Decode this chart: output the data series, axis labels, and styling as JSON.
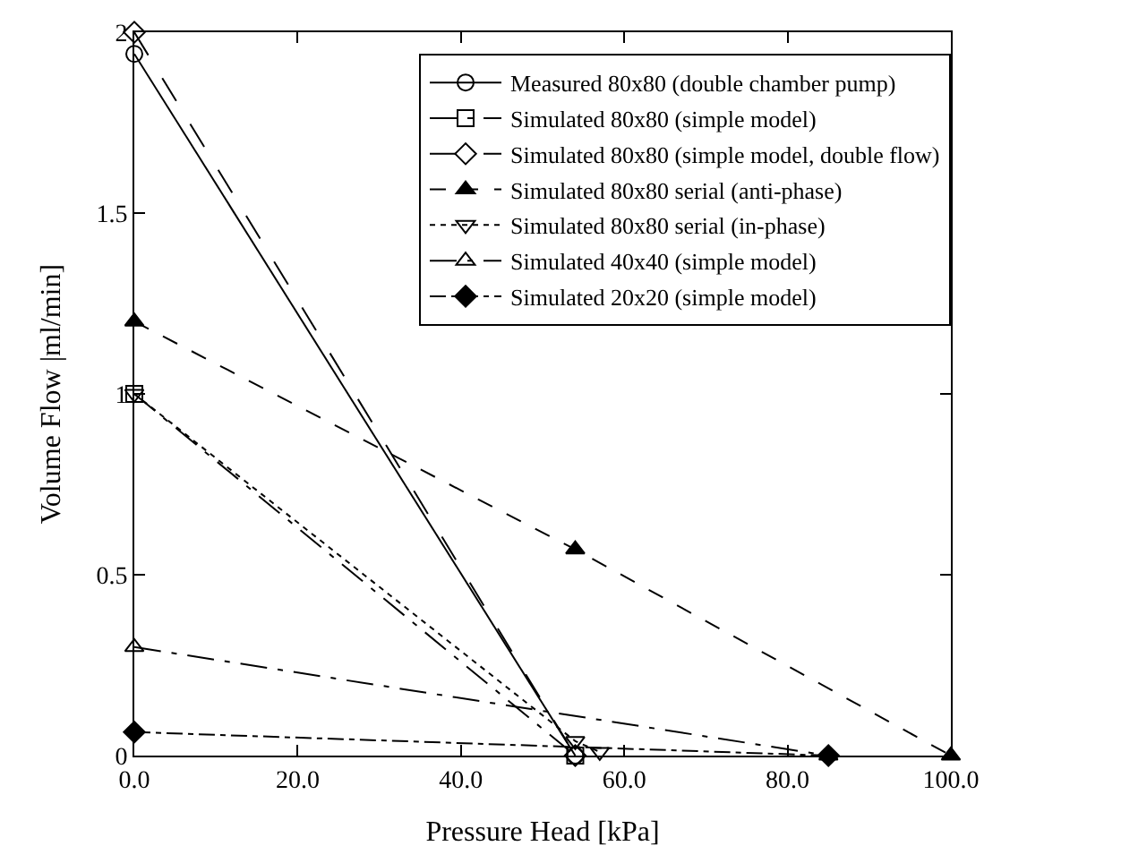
{
  "chart_data": {
    "type": "line",
    "xlabel": "Pressure Head [kPa]",
    "ylabel": "Volume Flow |ml/min]",
    "xlim": [
      0,
      100
    ],
    "ylim": [
      0,
      2
    ],
    "xticks": [
      {
        "value": 0,
        "label": "0.0"
      },
      {
        "value": 20,
        "label": "20.0"
      },
      {
        "value": 40,
        "label": "40.0"
      },
      {
        "value": 60,
        "label": "60.0"
      },
      {
        "value": 80,
        "label": "80.0"
      },
      {
        "value": 100,
        "label": "100.0"
      }
    ],
    "yticks": [
      0,
      0.5,
      1,
      1.5,
      2
    ],
    "legend": "top right",
    "series": [
      {
        "name": "Measured 80x80 (double chamber pump)",
        "color": "#000000",
        "marker": "circle-open",
        "line_style": "solid",
        "x": [
          0,
          54
        ],
        "values": [
          1.94,
          0
        ]
      },
      {
        "name": "Simulated 80x80 (simple model)",
        "color": "#000000",
        "marker": "square-open",
        "line_style": "longdashdot",
        "x": [
          0,
          54
        ],
        "values": [
          1.0,
          0
        ]
      },
      {
        "name": "Simulated 80x80 (simple model, double flow)",
        "color": "#000000",
        "marker": "diamond-open",
        "line_style": "longdash",
        "x": [
          0,
          54
        ],
        "values": [
          2.0,
          0
        ]
      },
      {
        "name": "Simulated 80x80 serial (anti-phase)",
        "color": "#000000",
        "marker": "triangle",
        "line_style": "dashed",
        "x": [
          0,
          54,
          100
        ],
        "values": [
          1.2,
          0.57,
          0
        ]
      },
      {
        "name": "Simulated 80x80 serial (in-phase)",
        "color": "#000000",
        "marker": "triangle-down-open",
        "line_style": "dotted",
        "x": [
          0,
          54,
          57
        ],
        "values": [
          1.0,
          0.04,
          0.01
        ]
      },
      {
        "name": "Simulated 40x40 (simple model)",
        "color": "#000000",
        "marker": "triangle-open",
        "line_style": "longdashdot",
        "x": [
          0,
          85
        ],
        "values": [
          0.3,
          0
        ]
      },
      {
        "name": "Simulated 20x20 (simple model)",
        "color": "#000000",
        "marker": "diamond",
        "line_style": "dashdot",
        "x": [
          0,
          85
        ],
        "values": [
          0.065,
          0
        ]
      }
    ]
  }
}
